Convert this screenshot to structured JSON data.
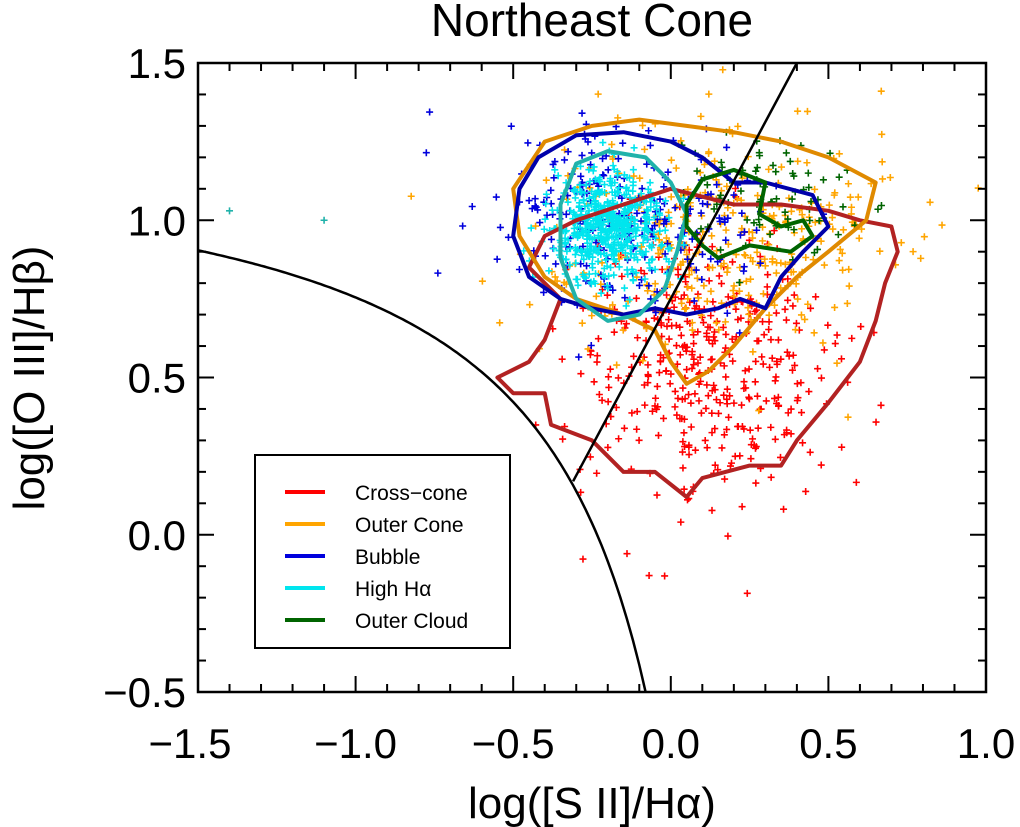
{
  "chart_data": {
    "type": "scatter",
    "title": "Northeast Cone",
    "xlabel": "log([S II]/Hα)",
    "ylabel": "log([O III]/Hβ)",
    "xlim": [
      -1.5,
      1.0
    ],
    "ylim": [
      -0.5,
      1.5
    ],
    "xticks": [
      -1.5,
      -1.0,
      -0.5,
      0.0,
      0.5,
      1.0
    ],
    "xtick_labels": [
      "−1.5",
      "−1.0",
      "−0.5",
      "0.0",
      "0.5",
      "1.0"
    ],
    "yticks": [
      -0.5,
      0.0,
      0.5,
      1.0,
      1.5
    ],
    "ytick_labels": [
      "−0.5",
      "0.0",
      "0.5",
      "1.0",
      "1.5"
    ],
    "legend_position": "bottom-left",
    "series": [
      {
        "name": "Cross−cone",
        "color": "#ff0000",
        "contour_color": "#b22222",
        "cloud": {
          "cx": 0.1,
          "cy": 0.55,
          "sx": 0.2,
          "sy": 0.22,
          "n": 420
        },
        "contour": [
          [
            -0.55,
            0.5
          ],
          [
            -0.45,
            0.55
          ],
          [
            -0.4,
            0.62
          ],
          [
            -0.35,
            0.75
          ],
          [
            -0.45,
            0.85
          ],
          [
            -0.4,
            0.95
          ],
          [
            -0.3,
            1.0
          ],
          [
            -0.15,
            1.05
          ],
          [
            0.0,
            1.1
          ],
          [
            0.2,
            1.05
          ],
          [
            0.35,
            1.05
          ],
          [
            0.5,
            1.03
          ],
          [
            0.6,
            1.0
          ],
          [
            0.7,
            0.98
          ],
          [
            0.72,
            0.9
          ],
          [
            0.68,
            0.8
          ],
          [
            0.65,
            0.68
          ],
          [
            0.6,
            0.55
          ],
          [
            0.5,
            0.42
          ],
          [
            0.4,
            0.3
          ],
          [
            0.35,
            0.22
          ],
          [
            0.25,
            0.22
          ],
          [
            0.1,
            0.18
          ],
          [
            0.05,
            0.12
          ],
          [
            -0.05,
            0.2
          ],
          [
            -0.15,
            0.2
          ],
          [
            -0.25,
            0.3
          ],
          [
            -0.38,
            0.35
          ],
          [
            -0.4,
            0.45
          ],
          [
            -0.5,
            0.45
          ]
        ]
      },
      {
        "name": "Outer Cone",
        "color": "#ffa500",
        "contour_color": "#e08a00",
        "cloud": {
          "cx": 0.15,
          "cy": 0.95,
          "sx": 0.28,
          "sy": 0.18,
          "n": 360
        },
        "contour": [
          [
            -0.5,
            1.1
          ],
          [
            -0.4,
            1.25
          ],
          [
            -0.25,
            1.3
          ],
          [
            -0.1,
            1.32
          ],
          [
            0.05,
            1.3
          ],
          [
            0.2,
            1.28
          ],
          [
            0.35,
            1.25
          ],
          [
            0.5,
            1.2
          ],
          [
            0.65,
            1.12
          ],
          [
            0.62,
            1.0
          ],
          [
            0.5,
            0.9
          ],
          [
            0.4,
            0.82
          ],
          [
            0.3,
            0.72
          ],
          [
            0.2,
            0.6
          ],
          [
            0.12,
            0.52
          ],
          [
            0.05,
            0.48
          ],
          [
            0.0,
            0.55
          ],
          [
            -0.05,
            0.65
          ],
          [
            -0.15,
            0.7
          ],
          [
            -0.3,
            0.75
          ],
          [
            -0.4,
            0.82
          ],
          [
            -0.48,
            0.95
          ]
        ]
      },
      {
        "name": "Bubble",
        "color": "#0000dd",
        "contour_color": "#0000aa",
        "cloud": {
          "cx": -0.15,
          "cy": 1.0,
          "sx": 0.22,
          "sy": 0.15,
          "n": 240
        },
        "contour": [
          [
            -0.48,
            1.1
          ],
          [
            -0.42,
            1.2
          ],
          [
            -0.3,
            1.27
          ],
          [
            -0.15,
            1.28
          ],
          [
            0.0,
            1.25
          ],
          [
            0.1,
            1.2
          ],
          [
            0.2,
            1.12
          ],
          [
            0.3,
            1.12
          ],
          [
            0.45,
            1.08
          ],
          [
            0.5,
            0.98
          ],
          [
            0.42,
            0.9
          ],
          [
            0.35,
            0.82
          ],
          [
            0.3,
            0.72
          ],
          [
            0.22,
            0.75
          ],
          [
            0.15,
            0.72
          ],
          [
            0.05,
            0.7
          ],
          [
            -0.05,
            0.72
          ],
          [
            -0.15,
            0.7
          ],
          [
            -0.25,
            0.72
          ],
          [
            -0.35,
            0.75
          ],
          [
            -0.45,
            0.82
          ],
          [
            -0.5,
            0.95
          ]
        ]
      },
      {
        "name": "High Hα",
        "color": "#00e5ee",
        "contour_color": "#20b2aa",
        "cloud": {
          "cx": -0.2,
          "cy": 0.98,
          "sx": 0.09,
          "sy": 0.08,
          "n": 520
        },
        "contour": [
          [
            -0.35,
            1.05
          ],
          [
            -0.3,
            1.18
          ],
          [
            -0.2,
            1.22
          ],
          [
            -0.08,
            1.2
          ],
          [
            0.0,
            1.12
          ],
          [
            0.05,
            1.02
          ],
          [
            0.02,
            0.9
          ],
          [
            -0.02,
            0.78
          ],
          [
            -0.1,
            0.7
          ],
          [
            -0.2,
            0.68
          ],
          [
            -0.3,
            0.75
          ],
          [
            -0.35,
            0.88
          ]
        ]
      },
      {
        "name": "Outer Cloud",
        "color": "#006400",
        "contour_color": "#006400",
        "cloud": {
          "cx": 0.3,
          "cy": 1.08,
          "sx": 0.15,
          "sy": 0.1,
          "n": 80
        },
        "contour": [
          [
            0.05,
            1.05
          ],
          [
            0.1,
            1.13
          ],
          [
            0.2,
            1.16
          ],
          [
            0.3,
            1.12
          ],
          [
            0.28,
            1.02
          ],
          [
            0.35,
            0.98
          ],
          [
            0.42,
            1.0
          ],
          [
            0.45,
            0.95
          ],
          [
            0.38,
            0.9
          ],
          [
            0.25,
            0.92
          ],
          [
            0.15,
            0.88
          ],
          [
            0.1,
            0.92
          ],
          [
            0.05,
            0.98
          ]
        ]
      }
    ],
    "extra_points": [
      {
        "x": -1.4,
        "y": 1.03,
        "color": "#20b2aa"
      },
      {
        "x": -1.1,
        "y": 1.0,
        "color": "#20b2aa"
      }
    ],
    "curves": {
      "maximum_starburst": {
        "formula": "0.72/(x-0.32)+1.30"
      },
      "seyfert_liner_line": {
        "points": [
          [
            -0.31,
            0.17
          ],
          [
            0.4,
            1.5
          ]
        ]
      }
    }
  }
}
